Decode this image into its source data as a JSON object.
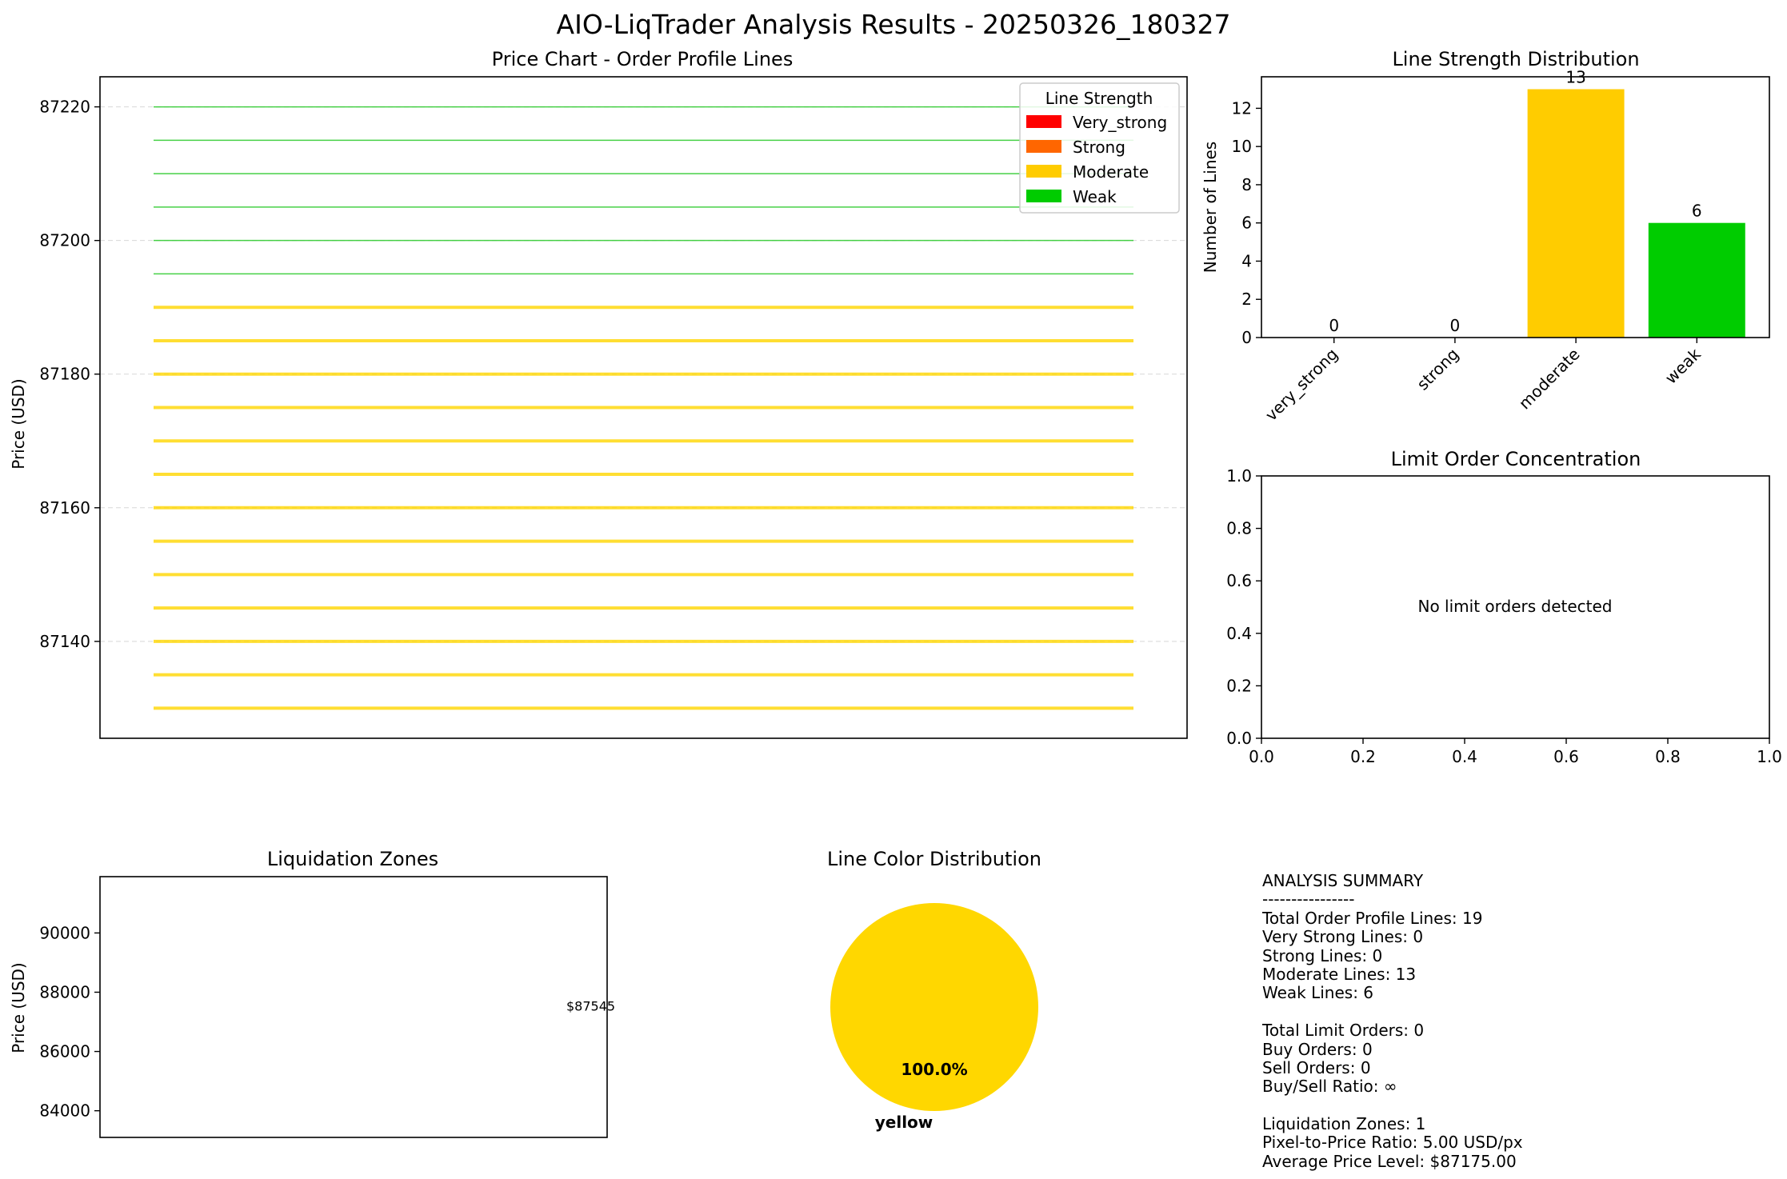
{
  "figure_title": "AIO-LiqTrader Analysis Results - 20250326_180327",
  "colors": {
    "very_strong": "#ff0000",
    "strong": "#ff6600",
    "moderate": "#ffcc00",
    "weak": "#00cc00",
    "moderate_line": "#ffd700",
    "weak_line": "#33cc33",
    "pie_yellow": "#ffd700"
  },
  "chart_data": [
    {
      "type": "line",
      "title": "Price Chart - Order Profile Lines",
      "xlabel": "",
      "ylabel": "Price (USD)",
      "ylim": [
        87125.5,
        87224.5
      ],
      "yticks": [
        87140,
        87160,
        87180,
        87200,
        87220
      ],
      "grid": true,
      "legend": {
        "title": "Line Strength",
        "position": "top-right",
        "entries": [
          "Very_strong",
          "Strong",
          "Moderate",
          "Weak"
        ]
      },
      "series": [
        {
          "name": "Moderate",
          "values": [
            87130,
            87135,
            87140,
            87145,
            87150,
            87155,
            87160,
            87165,
            87170,
            87175,
            87180,
            87185,
            87190
          ]
        },
        {
          "name": "Weak",
          "values": [
            87195,
            87200,
            87205,
            87210,
            87215,
            87220
          ]
        }
      ]
    },
    {
      "type": "bar",
      "title": "Line Strength Distribution",
      "xlabel": "",
      "ylabel": "Number of Lines",
      "categories": [
        "very_strong",
        "strong",
        "moderate",
        "weak"
      ],
      "values": [
        0,
        0,
        13,
        6
      ],
      "ylim": [
        0,
        13.65
      ],
      "yticks": [
        0,
        2,
        4,
        6,
        8,
        10,
        12
      ],
      "grid": false
    },
    {
      "type": "scatter",
      "title": "Limit Order Concentration",
      "xlabel": "",
      "ylabel": "",
      "xlim": [
        0,
        1
      ],
      "ylim": [
        0,
        1
      ],
      "xticks": [
        "0.0",
        "0.2",
        "0.4",
        "0.6",
        "0.8",
        "1.0"
      ],
      "yticks": [
        "0.0",
        "0.2",
        "0.4",
        "0.6",
        "0.8",
        "1.0"
      ],
      "annotation": "No limit orders detected",
      "values": []
    },
    {
      "type": "scatter",
      "title": "Liquidation Zones",
      "xlabel": "",
      "ylabel": "Price (USD)",
      "ylim": [
        83100,
        91900
      ],
      "yticks": [
        84000,
        86000,
        88000,
        90000
      ],
      "annotations": [
        {
          "price": 87545,
          "label": "$87545"
        }
      ]
    },
    {
      "type": "pie",
      "title": "Line Color Distribution",
      "slices": [
        {
          "label": "yellow",
          "value": 100.0,
          "pct_label": "100.0%"
        }
      ]
    }
  ],
  "summary_lines": [
    "ANALYSIS SUMMARY",
    "----------------",
    "Total Order Profile Lines: 19",
    "Very Strong Lines: 0",
    "Strong Lines: 0",
    "Moderate Lines: 13",
    "Weak Lines: 6",
    "",
    "Total Limit Orders: 0",
    "Buy Orders: 0",
    "Sell Orders: 0",
    "Buy/Sell Ratio: ∞",
    "",
    "Liquidation Zones: 1",
    "Pixel-to-Price Ratio: 5.00 USD/px",
    "Average Price Level: $87175.00"
  ]
}
